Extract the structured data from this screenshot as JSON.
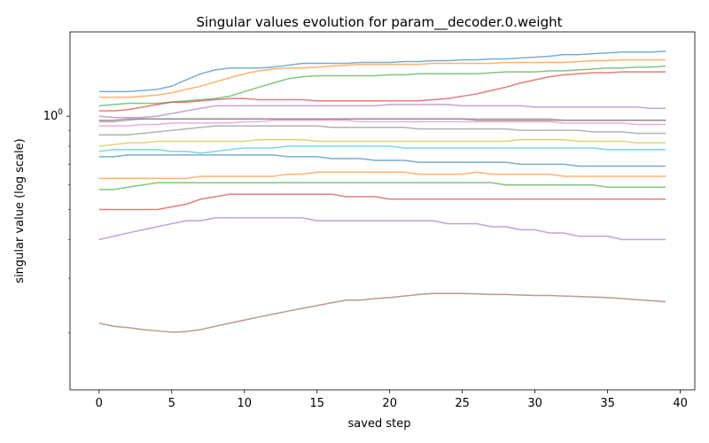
{
  "chart_data": {
    "type": "line",
    "title": "Singular values evolution for param__decoder.0.weight",
    "xlabel": "saved step",
    "ylabel": "singular value (log scale)",
    "yscale": "log",
    "xlim": [
      -2.0,
      41.0
    ],
    "ylim": [
      0.131,
      1.87
    ],
    "grid": false,
    "x": [
      0,
      1,
      2,
      3,
      4,
      5,
      6,
      7,
      8,
      9,
      10,
      11,
      12,
      13,
      14,
      15,
      16,
      17,
      18,
      19,
      20,
      21,
      22,
      23,
      24,
      25,
      26,
      27,
      28,
      29,
      30,
      31,
      32,
      33,
      34,
      35,
      36,
      37,
      38,
      39
    ],
    "xticks": [
      0,
      5,
      10,
      15,
      20,
      25,
      30,
      35,
      40
    ],
    "yticks": [
      1
    ],
    "ytick_labels": [
      "10^0"
    ],
    "series": [
      {
        "color": "#1f77b4",
        "values": [
          1.2,
          1.2,
          1.2,
          1.21,
          1.22,
          1.25,
          1.31,
          1.37,
          1.41,
          1.43,
          1.43,
          1.43,
          1.44,
          1.46,
          1.48,
          1.48,
          1.48,
          1.48,
          1.49,
          1.49,
          1.49,
          1.5,
          1.5,
          1.51,
          1.51,
          1.52,
          1.52,
          1.53,
          1.53,
          1.54,
          1.55,
          1.56,
          1.58,
          1.58,
          1.59,
          1.6,
          1.61,
          1.61,
          1.61,
          1.62
        ]
      },
      {
        "color": "#ff7f0e",
        "values": [
          1.15,
          1.15,
          1.15,
          1.16,
          1.17,
          1.19,
          1.22,
          1.25,
          1.29,
          1.33,
          1.37,
          1.4,
          1.42,
          1.43,
          1.43,
          1.44,
          1.45,
          1.46,
          1.47,
          1.47,
          1.47,
          1.47,
          1.47,
          1.48,
          1.48,
          1.48,
          1.48,
          1.48,
          1.49,
          1.49,
          1.49,
          1.49,
          1.49,
          1.5,
          1.51,
          1.51,
          1.52,
          1.52,
          1.52,
          1.52
        ]
      },
      {
        "color": "#2ca02c",
        "values": [
          1.08,
          1.09,
          1.1,
          1.1,
          1.1,
          1.11,
          1.12,
          1.13,
          1.14,
          1.16,
          1.2,
          1.24,
          1.28,
          1.32,
          1.34,
          1.35,
          1.35,
          1.35,
          1.35,
          1.35,
          1.36,
          1.36,
          1.37,
          1.37,
          1.37,
          1.37,
          1.37,
          1.38,
          1.39,
          1.39,
          1.39,
          1.4,
          1.4,
          1.41,
          1.42,
          1.43,
          1.43,
          1.44,
          1.44,
          1.45
        ]
      },
      {
        "color": "#d62728",
        "values": [
          1.04,
          1.04,
          1.05,
          1.07,
          1.09,
          1.11,
          1.11,
          1.12,
          1.13,
          1.14,
          1.14,
          1.13,
          1.13,
          1.13,
          1.13,
          1.12,
          1.12,
          1.12,
          1.12,
          1.12,
          1.12,
          1.12,
          1.12,
          1.13,
          1.14,
          1.16,
          1.18,
          1.21,
          1.24,
          1.28,
          1.31,
          1.34,
          1.36,
          1.37,
          1.38,
          1.38,
          1.39,
          1.39,
          1.39,
          1.39
        ]
      },
      {
        "color": "#9467bd",
        "values": [
          1.0,
          0.99,
          0.99,
          0.99,
          1.0,
          1.02,
          1.04,
          1.06,
          1.08,
          1.08,
          1.08,
          1.08,
          1.08,
          1.08,
          1.08,
          1.08,
          1.08,
          1.08,
          1.08,
          1.08,
          1.09,
          1.09,
          1.09,
          1.09,
          1.09,
          1.08,
          1.08,
          1.08,
          1.08,
          1.08,
          1.07,
          1.07,
          1.07,
          1.07,
          1.07,
          1.07,
          1.07,
          1.07,
          1.06,
          1.06
        ]
      },
      {
        "color": "#8c564b",
        "values": [
          0.97,
          0.97,
          0.98,
          0.98,
          0.98,
          0.98,
          0.98,
          0.98,
          0.98,
          0.98,
          0.98,
          0.98,
          0.98,
          0.98,
          0.98,
          0.98,
          0.98,
          0.98,
          0.98,
          0.98,
          0.98,
          0.98,
          0.98,
          0.98,
          0.98,
          0.98,
          0.97,
          0.97,
          0.97,
          0.97,
          0.97,
          0.97,
          0.97,
          0.97,
          0.97,
          0.97,
          0.97,
          0.97,
          0.97,
          0.97
        ]
      },
      {
        "color": "#7f7f7f",
        "values": [
          0.96,
          0.96,
          0.97,
          0.98,
          0.98,
          0.98,
          0.98,
          0.98,
          0.98,
          0.98,
          0.98,
          0.98,
          0.98,
          0.98,
          0.98,
          0.98,
          0.98,
          0.98,
          0.98,
          0.98,
          0.98,
          0.98,
          0.98,
          0.98,
          0.98,
          0.98,
          0.98,
          0.98,
          0.98,
          0.98,
          0.98,
          0.98,
          0.97,
          0.97,
          0.97,
          0.97,
          0.97,
          0.97,
          0.97,
          0.97
        ]
      },
      {
        "color": "#e377c2",
        "values": [
          0.93,
          0.93,
          0.93,
          0.94,
          0.94,
          0.95,
          0.95,
          0.95,
          0.95,
          0.95,
          0.96,
          0.96,
          0.97,
          0.97,
          0.97,
          0.97,
          0.97,
          0.97,
          0.96,
          0.96,
          0.96,
          0.96,
          0.96,
          0.96,
          0.96,
          0.96,
          0.96,
          0.96,
          0.96,
          0.96,
          0.96,
          0.96,
          0.95,
          0.95,
          0.95,
          0.95,
          0.95,
          0.94,
          0.94,
          0.94
        ]
      },
      {
        "color": "#7f7f7f",
        "values": [
          0.87,
          0.87,
          0.87,
          0.88,
          0.89,
          0.9,
          0.91,
          0.92,
          0.93,
          0.93,
          0.93,
          0.93,
          0.93,
          0.93,
          0.93,
          0.93,
          0.92,
          0.92,
          0.92,
          0.92,
          0.92,
          0.92,
          0.91,
          0.91,
          0.91,
          0.91,
          0.91,
          0.91,
          0.91,
          0.9,
          0.9,
          0.9,
          0.9,
          0.9,
          0.89,
          0.89,
          0.89,
          0.88,
          0.88,
          0.88
        ]
      },
      {
        "color": "#bcbd22",
        "values": [
          0.8,
          0.81,
          0.82,
          0.82,
          0.83,
          0.83,
          0.83,
          0.83,
          0.83,
          0.83,
          0.83,
          0.84,
          0.84,
          0.84,
          0.84,
          0.83,
          0.83,
          0.83,
          0.83,
          0.83,
          0.83,
          0.83,
          0.83,
          0.83,
          0.83,
          0.83,
          0.83,
          0.83,
          0.83,
          0.84,
          0.84,
          0.84,
          0.84,
          0.83,
          0.83,
          0.83,
          0.83,
          0.82,
          0.82,
          0.82
        ]
      },
      {
        "color": "#17becf",
        "values": [
          0.77,
          0.78,
          0.78,
          0.78,
          0.78,
          0.77,
          0.77,
          0.76,
          0.77,
          0.78,
          0.79,
          0.79,
          0.79,
          0.8,
          0.8,
          0.8,
          0.8,
          0.8,
          0.8,
          0.8,
          0.8,
          0.79,
          0.79,
          0.79,
          0.79,
          0.79,
          0.79,
          0.79,
          0.79,
          0.79,
          0.79,
          0.79,
          0.79,
          0.79,
          0.79,
          0.78,
          0.78,
          0.78,
          0.78,
          0.78
        ]
      },
      {
        "color": "#1f77b4",
        "values": [
          0.74,
          0.74,
          0.75,
          0.75,
          0.75,
          0.75,
          0.75,
          0.75,
          0.75,
          0.75,
          0.75,
          0.75,
          0.75,
          0.74,
          0.74,
          0.74,
          0.73,
          0.73,
          0.73,
          0.72,
          0.72,
          0.72,
          0.71,
          0.71,
          0.71,
          0.71,
          0.71,
          0.71,
          0.71,
          0.7,
          0.7,
          0.7,
          0.7,
          0.69,
          0.69,
          0.69,
          0.69,
          0.69,
          0.69,
          0.69
        ]
      },
      {
        "color": "#ff7f0e",
        "values": [
          0.63,
          0.63,
          0.63,
          0.63,
          0.63,
          0.63,
          0.63,
          0.64,
          0.64,
          0.64,
          0.64,
          0.64,
          0.64,
          0.65,
          0.65,
          0.66,
          0.66,
          0.66,
          0.66,
          0.66,
          0.66,
          0.66,
          0.65,
          0.65,
          0.65,
          0.65,
          0.66,
          0.65,
          0.65,
          0.65,
          0.65,
          0.65,
          0.64,
          0.64,
          0.64,
          0.64,
          0.64,
          0.64,
          0.64,
          0.64
        ]
      },
      {
        "color": "#2ca02c",
        "values": [
          0.58,
          0.58,
          0.59,
          0.6,
          0.61,
          0.61,
          0.61,
          0.61,
          0.61,
          0.61,
          0.61,
          0.61,
          0.61,
          0.61,
          0.61,
          0.61,
          0.61,
          0.61,
          0.61,
          0.61,
          0.61,
          0.61,
          0.61,
          0.61,
          0.61,
          0.61,
          0.61,
          0.61,
          0.6,
          0.6,
          0.6,
          0.6,
          0.6,
          0.6,
          0.6,
          0.59,
          0.59,
          0.59,
          0.59,
          0.59
        ]
      },
      {
        "color": "#d62728",
        "values": [
          0.5,
          0.5,
          0.5,
          0.5,
          0.5,
          0.51,
          0.52,
          0.54,
          0.55,
          0.56,
          0.56,
          0.56,
          0.56,
          0.56,
          0.56,
          0.56,
          0.56,
          0.55,
          0.55,
          0.55,
          0.54,
          0.54,
          0.54,
          0.54,
          0.54,
          0.54,
          0.54,
          0.54,
          0.54,
          0.54,
          0.54,
          0.54,
          0.54,
          0.54,
          0.54,
          0.54,
          0.54,
          0.54,
          0.54,
          0.54
        ]
      },
      {
        "color": "#9467bd",
        "values": [
          0.4,
          0.41,
          0.42,
          0.43,
          0.44,
          0.45,
          0.46,
          0.46,
          0.47,
          0.47,
          0.47,
          0.47,
          0.47,
          0.47,
          0.47,
          0.46,
          0.46,
          0.46,
          0.46,
          0.46,
          0.46,
          0.46,
          0.46,
          0.46,
          0.45,
          0.45,
          0.45,
          0.44,
          0.44,
          0.43,
          0.43,
          0.42,
          0.42,
          0.41,
          0.41,
          0.41,
          0.4,
          0.4,
          0.4,
          0.4
        ]
      },
      {
        "color": "#8c564b",
        "values": [
          0.215,
          0.21,
          0.208,
          0.205,
          0.203,
          0.201,
          0.202,
          0.205,
          0.21,
          0.215,
          0.22,
          0.225,
          0.23,
          0.235,
          0.24,
          0.245,
          0.25,
          0.255,
          0.255,
          0.258,
          0.26,
          0.263,
          0.266,
          0.268,
          0.268,
          0.268,
          0.267,
          0.266,
          0.266,
          0.265,
          0.264,
          0.264,
          0.263,
          0.262,
          0.261,
          0.26,
          0.258,
          0.256,
          0.254,
          0.252
        ]
      }
    ]
  }
}
